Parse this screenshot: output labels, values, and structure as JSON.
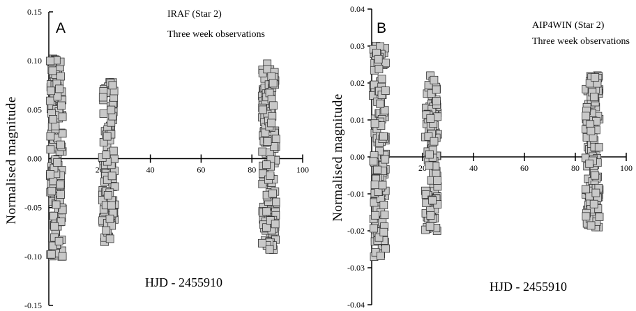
{
  "chart_data": [
    {
      "type": "scatter",
      "panel": "A",
      "annotations": [
        "IRAF (Star 2)",
        "Three week observations"
      ],
      "xlabel": "HJD - 2455910",
      "ylabel": "Normalised magnitude",
      "xlim": [
        0,
        100
      ],
      "ylim": [
        -0.15,
        0.15
      ],
      "xticks": [
        20,
        40,
        60,
        80,
        100
      ],
      "xtick_labels": [
        "20",
        "40",
        "60",
        "80",
        "100"
      ],
      "yticks": [
        0.15,
        0.1,
        0.05,
        0.0,
        -0.05,
        -0.1,
        -0.15
      ],
      "ytick_labels": [
        "0.15",
        "0.10",
        "0.05",
        "0.00",
        "-0.05",
        "-0.10",
        "-0.15"
      ],
      "grid": false,
      "clusters": [
        {
          "x_range": [
            0.5,
            5.5
          ],
          "y_min": -0.1,
          "y_max": 0.102,
          "n": 150
        },
        {
          "x_range": [
            21.0,
            26.0
          ],
          "y_min": -0.085,
          "y_max": 0.078,
          "n": 110
        },
        {
          "x_range": [
            84.0,
            89.5
          ],
          "y_min": -0.093,
          "y_max": 0.097,
          "n": 150
        }
      ]
    },
    {
      "type": "scatter",
      "panel": "B",
      "annotations": [
        "AIP4WIN (Star 2)",
        "Three week observations"
      ],
      "xlabel": "HJD - 2455910",
      "ylabel": "Normalised magnitude",
      "xlim": [
        0,
        100
      ],
      "ylim": [
        -0.04,
        0.04
      ],
      "xticks": [
        20,
        40,
        60,
        80,
        100
      ],
      "xtick_labels": [
        "20",
        "40",
        "60",
        "80",
        "100"
      ],
      "yticks": [
        0.04,
        0.03,
        0.02,
        0.01,
        0.0,
        -0.01,
        -0.02,
        -0.03,
        -0.04
      ],
      "ytick_labels": [
        "0.04",
        "0.03",
        "0.02",
        "0.01",
        "0.00",
        "-0.01",
        "-0.02",
        "-0.03",
        "-0.04"
      ],
      "grid": false,
      "clusters": [
        {
          "x_range": [
            0.5,
            5.5
          ],
          "y_min": -0.027,
          "y_max": 0.03,
          "n": 150
        },
        {
          "x_range": [
            21.0,
            26.0
          ],
          "y_min": -0.02,
          "y_max": 0.022,
          "n": 110
        },
        {
          "x_range": [
            84.0,
            89.5
          ],
          "y_min": -0.019,
          "y_max": 0.022,
          "n": 150
        }
      ]
    }
  ]
}
